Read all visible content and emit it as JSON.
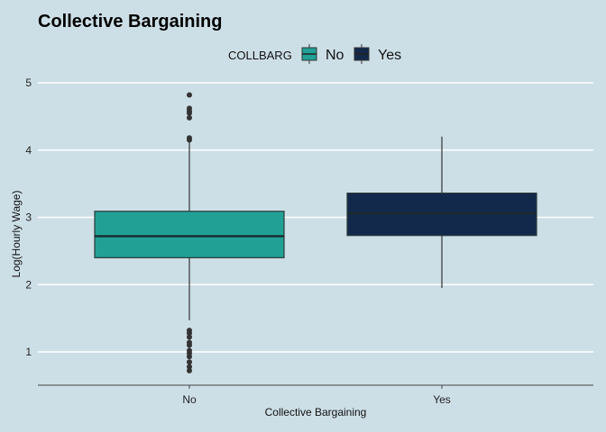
{
  "chart_data": {
    "type": "boxplot",
    "title": "Collective Bargaining",
    "xlabel": "Collective Bargaining",
    "ylabel": "Log(Hourly Wage)",
    "ylim": [
      0.5,
      5.2
    ],
    "yticks": [
      1,
      2,
      3,
      4,
      5
    ],
    "grid": "horizontal major lines (white)",
    "legend": {
      "title": "COLLBARG",
      "placement": "top-center",
      "entries": [
        {
          "label": "No",
          "color": "#21a196"
        },
        {
          "label": "Yes",
          "color": "#13294b"
        }
      ]
    },
    "categories": [
      "No",
      "Yes"
    ],
    "boxes": [
      {
        "category": "No",
        "color": "#21a196",
        "whisker_low": 1.47,
        "q1": 2.4,
        "median": 2.72,
        "q3": 3.09,
        "whisker_high": 4.12,
        "outliers": [
          4.82,
          4.62,
          4.58,
          4.55,
          4.48,
          4.18,
          4.15,
          1.32,
          1.28,
          1.22,
          1.14,
          1.1,
          1.02,
          0.98,
          0.93,
          0.85,
          0.78,
          0.72
        ]
      },
      {
        "category": "Yes",
        "color": "#13294b",
        "whisker_low": 1.95,
        "q1": 2.73,
        "median": 3.06,
        "q3": 3.36,
        "whisker_high": 4.2,
        "outliers": []
      }
    ]
  },
  "colors": {
    "background": "#cddfe6",
    "grid": "#ffffff",
    "axis": "#444444"
  }
}
